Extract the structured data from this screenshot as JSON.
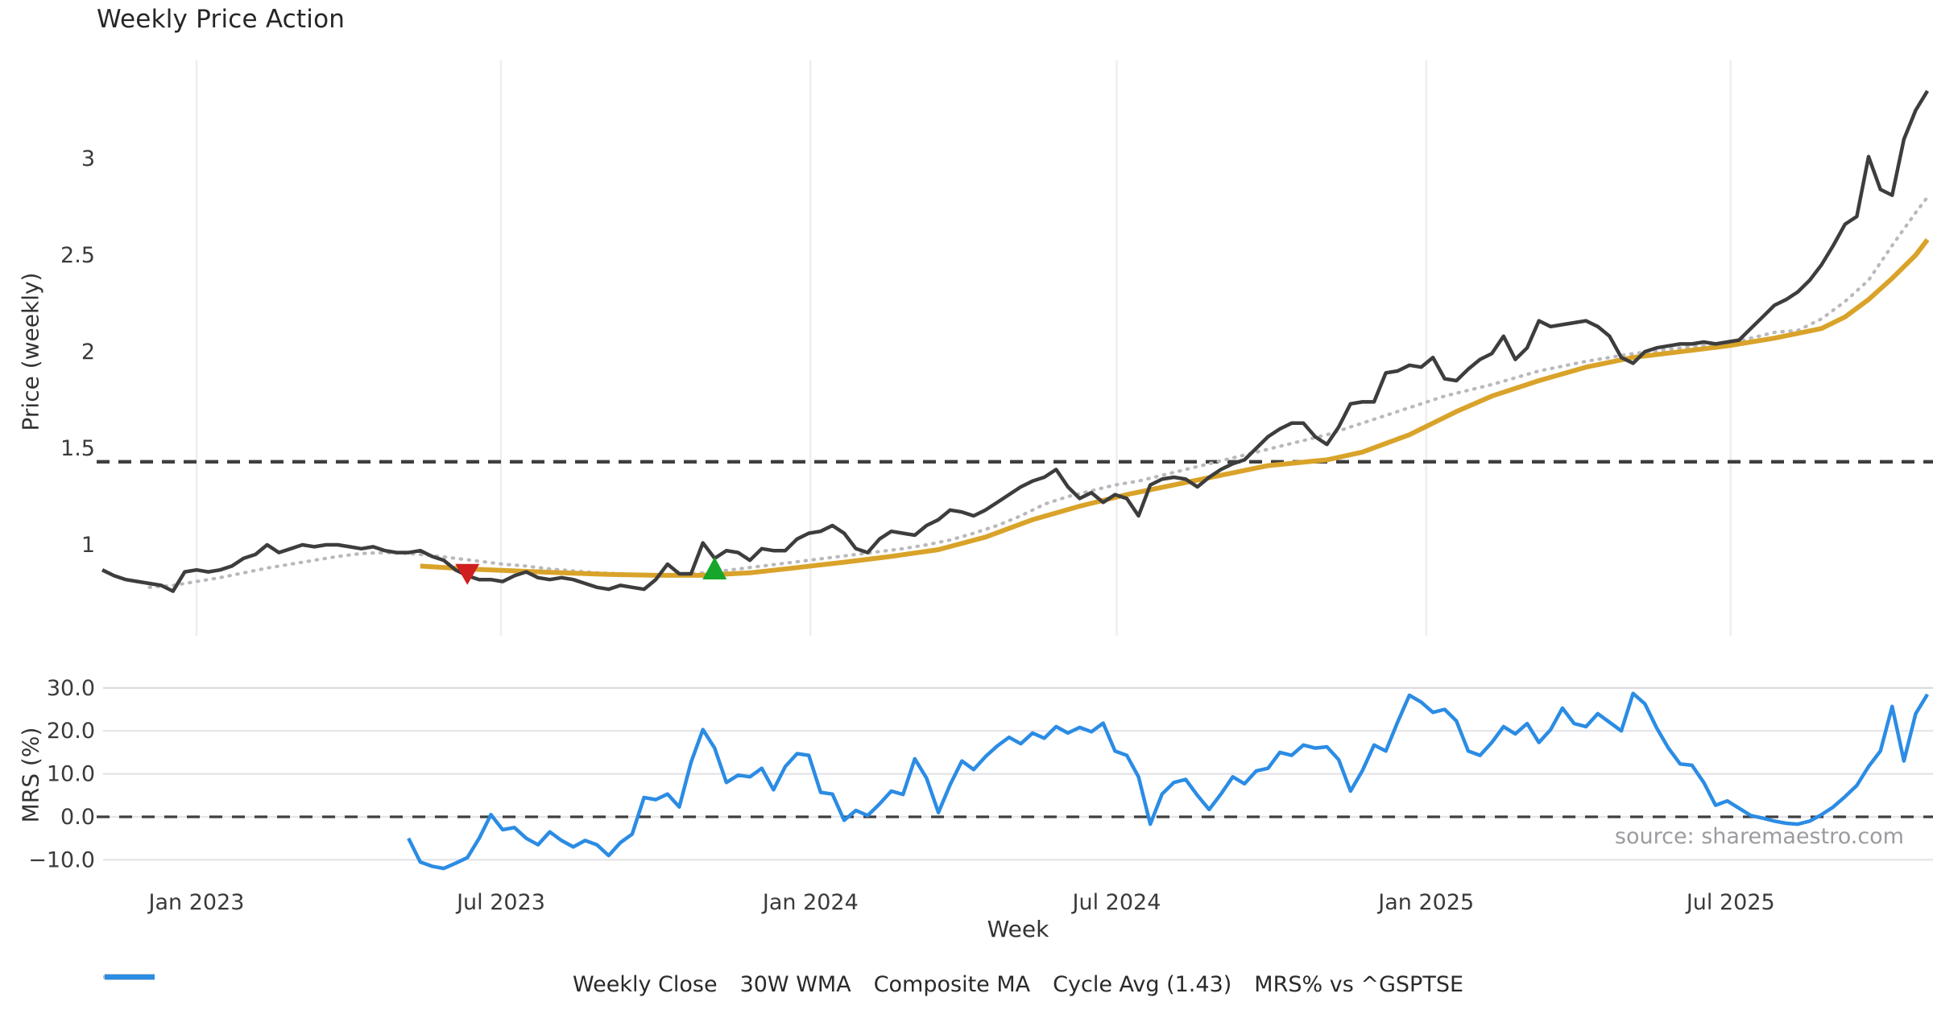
{
  "figure": {
    "title": "Weekly Price Action",
    "source_note": "source: sharemaestro.com",
    "background": "#ffffff"
  },
  "legend": {
    "items": [
      {
        "key": "weekly-close",
        "label": "Weekly Close",
        "color": "#3d3d3d",
        "style": "solid"
      },
      {
        "key": "wma-30w",
        "label": "30W WMA",
        "color": "#d9a32a",
        "style": "solid"
      },
      {
        "key": "composite-ma",
        "label": "Composite MA",
        "color": "#b9b9bd",
        "style": "dotted"
      },
      {
        "key": "cycle-avg",
        "label": "Cycle Avg (1.43)",
        "color": "#3f3f3f",
        "style": "dashed"
      },
      {
        "key": "mrs",
        "label": "MRS% vs ^GSPTSE",
        "color": "#2b8ce4",
        "style": "solid"
      }
    ]
  },
  "chart_data": {
    "type": "line",
    "title": "Weekly Price Action",
    "xlabel": "Week",
    "x_range": [
      "2022-11-06",
      "2025-10-26"
    ],
    "x_ticks": [
      {
        "date": "2023-01-01",
        "label": "Jan 2023"
      },
      {
        "date": "2023-07-01",
        "label": "Jul 2023"
      },
      {
        "date": "2024-01-01",
        "label": "Jan 2024"
      },
      {
        "date": "2024-07-01",
        "label": "Jul 2024"
      },
      {
        "date": "2025-01-01",
        "label": "Jan 2025"
      },
      {
        "date": "2025-07-01",
        "label": "Jul 2025"
      }
    ],
    "panels": [
      {
        "id": "price",
        "ylabel": "Price (weekly)",
        "ylim": [
          0.52,
          3.51
        ],
        "grid": "vertical",
        "yticks": [
          {
            "value": 1,
            "label": "1"
          },
          {
            "value": 1.5,
            "label": "1.5"
          },
          {
            "value": 2,
            "label": "2"
          },
          {
            "value": 2.5,
            "label": "2.5"
          },
          {
            "value": 3,
            "label": "3"
          }
        ],
        "cycle_avg": {
          "name": "Cycle Avg (1.43)",
          "value": 1.43,
          "color": "#3f3f3f",
          "style": "dashed",
          "width": 4.3
        },
        "series": [
          {
            "key": "weekly-close",
            "name": "Weekly Close",
            "color": "#3d3d3d",
            "style": "solid",
            "width": 4.5,
            "start": "2022-11-06",
            "step_days": 7,
            "values": [
              0.87,
              0.84,
              0.82,
              0.81,
              0.8,
              0.79,
              0.76,
              0.86,
              0.87,
              0.86,
              0.87,
              0.89,
              0.93,
              0.95,
              1.0,
              0.96,
              0.98,
              1.0,
              0.99,
              1.0,
              1.0,
              0.99,
              0.98,
              0.99,
              0.97,
              0.96,
              0.96,
              0.97,
              0.94,
              0.92,
              0.87,
              0.84,
              0.82,
              0.82,
              0.81,
              0.84,
              0.86,
              0.83,
              0.82,
              0.83,
              0.82,
              0.8,
              0.78,
              0.77,
              0.79,
              0.78,
              0.77,
              0.82,
              0.9,
              0.85,
              0.85,
              1.01,
              0.93,
              0.97,
              0.96,
              0.92,
              0.98,
              0.97,
              0.97,
              1.03,
              1.06,
              1.07,
              1.1,
              1.06,
              0.98,
              0.96,
              1.03,
              1.07,
              1.06,
              1.05,
              1.1,
              1.13,
              1.18,
              1.17,
              1.15,
              1.18,
              1.22,
              1.26,
              1.3,
              1.33,
              1.35,
              1.39,
              1.3,
              1.24,
              1.27,
              1.22,
              1.26,
              1.24,
              1.15,
              1.31,
              1.34,
              1.35,
              1.34,
              1.3,
              1.35,
              1.39,
              1.42,
              1.44,
              1.5,
              1.56,
              1.6,
              1.63,
              1.63,
              1.56,
              1.52,
              1.61,
              1.73,
              1.74,
              1.74,
              1.89,
              1.9,
              1.93,
              1.92,
              1.97,
              1.86,
              1.85,
              1.91,
              1.96,
              1.99,
              2.08,
              1.96,
              2.02,
              2.16,
              2.13,
              2.14,
              2.15,
              2.16,
              2.13,
              2.08,
              1.97,
              1.94,
              2.0,
              2.02,
              2.03,
              2.04,
              2.04,
              2.05,
              2.04,
              2.05,
              2.06,
              2.12,
              2.18,
              2.24,
              2.27,
              2.31,
              2.37,
              2.45,
              2.55,
              2.66,
              2.7,
              3.01,
              2.84,
              2.81,
              3.1,
              3.25,
              3.35
            ]
          },
          {
            "key": "wma-30w",
            "name": "30W WMA",
            "color": "#d9a32a",
            "style": "solid",
            "width": 6,
            "points": [
              [
                "2023-05-14",
                0.89
              ],
              [
                "2023-06-11",
                0.875
              ],
              [
                "2023-07-09",
                0.865
              ],
              [
                "2023-08-06",
                0.855
              ],
              [
                "2023-09-03",
                0.847
              ],
              [
                "2023-10-01",
                0.842
              ],
              [
                "2023-10-29",
                0.842
              ],
              [
                "2023-11-26",
                0.855
              ],
              [
                "2023-12-24",
                0.882
              ],
              [
                "2024-01-21",
                0.91
              ],
              [
                "2024-02-18",
                0.94
              ],
              [
                "2024-03-17",
                0.975
              ],
              [
                "2024-04-14",
                1.04
              ],
              [
                "2024-05-12",
                1.13
              ],
              [
                "2024-06-09",
                1.2
              ],
              [
                "2024-07-07",
                1.26
              ],
              [
                "2024-08-04",
                1.31
              ],
              [
                "2024-09-01",
                1.36
              ],
              [
                "2024-09-29",
                1.41
              ],
              [
                "2024-11-03",
                1.44
              ],
              [
                "2024-11-24",
                1.48
              ],
              [
                "2024-12-22",
                1.57
              ],
              [
                "2025-01-19",
                1.69
              ],
              [
                "2025-02-09",
                1.77
              ],
              [
                "2025-03-09",
                1.85
              ],
              [
                "2025-04-06",
                1.92
              ],
              [
                "2025-05-04",
                1.97
              ],
              [
                "2025-06-01",
                2.0
              ],
              [
                "2025-06-29",
                2.03
              ],
              [
                "2025-07-27",
                2.07
              ],
              [
                "2025-08-24",
                2.12
              ],
              [
                "2025-09-07",
                2.18
              ],
              [
                "2025-09-21",
                2.27
              ],
              [
                "2025-10-05",
                2.38
              ],
              [
                "2025-10-19",
                2.5
              ],
              [
                "2025-10-26",
                2.58
              ]
            ]
          },
          {
            "key": "composite-ma",
            "name": "Composite MA",
            "color": "#b9b9bd",
            "style": "dotted",
            "width": 4.2,
            "points": [
              [
                "2022-12-04",
                0.78
              ],
              [
                "2022-12-18",
                0.79
              ],
              [
                "2023-01-01",
                0.81
              ],
              [
                "2023-01-15",
                0.83
              ],
              [
                "2023-01-29",
                0.855
              ],
              [
                "2023-02-12",
                0.88
              ],
              [
                "2023-02-26",
                0.9
              ],
              [
                "2023-03-12",
                0.92
              ],
              [
                "2023-03-26",
                0.94
              ],
              [
                "2023-04-09",
                0.955
              ],
              [
                "2023-04-23",
                0.96
              ],
              [
                "2023-05-07",
                0.955
              ],
              [
                "2023-05-21",
                0.945
              ],
              [
                "2023-06-04",
                0.93
              ],
              [
                "2023-06-18",
                0.915
              ],
              [
                "2023-07-02",
                0.9
              ],
              [
                "2023-07-16",
                0.89
              ],
              [
                "2023-07-30",
                0.875
              ],
              [
                "2023-08-13",
                0.865
              ],
              [
                "2023-08-27",
                0.855
              ],
              [
                "2023-09-10",
                0.85
              ],
              [
                "2023-09-24",
                0.845
              ],
              [
                "2023-10-08",
                0.845
              ],
              [
                "2023-10-22",
                0.85
              ],
              [
                "2023-11-05",
                0.86
              ],
              [
                "2023-11-19",
                0.875
              ],
              [
                "2023-12-03",
                0.89
              ],
              [
                "2023-12-17",
                0.905
              ],
              [
                "2023-12-31",
                0.92
              ],
              [
                "2024-01-14",
                0.935
              ],
              [
                "2024-01-28",
                0.95
              ],
              [
                "2024-02-11",
                0.965
              ],
              [
                "2024-02-25",
                0.98
              ],
              [
                "2024-03-10",
                1.0
              ],
              [
                "2024-03-24",
                1.025
              ],
              [
                "2024-04-07",
                1.06
              ],
              [
                "2024-04-21",
                1.1
              ],
              [
                "2024-05-05",
                1.15
              ],
              [
                "2024-05-19",
                1.21
              ],
              [
                "2024-06-02",
                1.25
              ],
              [
                "2024-06-16",
                1.28
              ],
              [
                "2024-06-30",
                1.31
              ],
              [
                "2024-07-14",
                1.33
              ],
              [
                "2024-07-28",
                1.36
              ],
              [
                "2024-08-11",
                1.39
              ],
              [
                "2024-08-25",
                1.42
              ],
              [
                "2024-09-08",
                1.45
              ],
              [
                "2024-09-22",
                1.48
              ],
              [
                "2024-10-06",
                1.51
              ],
              [
                "2024-10-20",
                1.54
              ],
              [
                "2024-11-03",
                1.57
              ],
              [
                "2024-11-17",
                1.61
              ],
              [
                "2024-12-01",
                1.65
              ],
              [
                "2024-12-15",
                1.69
              ],
              [
                "2024-12-29",
                1.73
              ],
              [
                "2025-01-12",
                1.77
              ],
              [
                "2025-02-09",
                1.83
              ],
              [
                "2025-03-09",
                1.9
              ],
              [
                "2025-04-06",
                1.95
              ],
              [
                "2025-05-04",
                1.99
              ],
              [
                "2025-06-01",
                2.02
              ],
              [
                "2025-06-29",
                2.04
              ],
              [
                "2025-07-27",
                2.1
              ],
              [
                "2025-08-10",
                2.11
              ],
              [
                "2025-08-24",
                2.17
              ],
              [
                "2025-09-07",
                2.26
              ],
              [
                "2025-09-21",
                2.37
              ],
              [
                "2025-10-05",
                2.55
              ],
              [
                "2025-10-19",
                2.72
              ],
              [
                "2025-10-26",
                2.8
              ]
            ]
          }
        ],
        "markers": [
          {
            "key": "sell-signal",
            "shape": "triangle-down",
            "color": "#d01f1f",
            "date": "2023-06-11",
            "value": 0.855
          },
          {
            "key": "buy-signal",
            "shape": "triangle-up",
            "color": "#17a62b",
            "date": "2023-11-05",
            "value": 0.875
          }
        ]
      },
      {
        "id": "mrs",
        "ylabel": "MRS (%)",
        "ylim": [
          -16.6,
          33.6
        ],
        "grid": "horizontal",
        "zero_line": 0,
        "yticks": [
          {
            "value": 30,
            "label": "30.0"
          },
          {
            "value": 20,
            "label": "20.0"
          },
          {
            "value": 10,
            "label": "10.0"
          },
          {
            "value": 0,
            "label": "0.0"
          },
          {
            "value": -10,
            "label": "−10.0"
          }
        ],
        "series": [
          {
            "key": "mrs",
            "name": "MRS% vs ^GSPTSE",
            "color": "#2b8ce4",
            "style": "solid",
            "width": 4.5,
            "start": "2023-05-07",
            "step_days": 7,
            "values": [
              -5,
              -10.5,
              -11.5,
              -12,
              -10.8,
              -9.5,
              -5,
              0.5,
              -3,
              -2.5,
              -5,
              -6.5,
              -3.5,
              -5.5,
              -7,
              -5.5,
              -6.5,
              -9,
              -6,
              -4,
              4.5,
              4,
              5.3,
              2.3,
              12.7,
              20.3,
              16,
              8,
              9.7,
              9.3,
              11.3,
              6.3,
              11.7,
              14.7,
              14.3,
              5.7,
              5.3,
              -0.8,
              1.5,
              0.3,
              3,
              6,
              5.2,
              13.5,
              9,
              1,
              7.5,
              13,
              11,
              14,
              16.5,
              18.5,
              17,
              19.5,
              18.3,
              21,
              19.5,
              20.8,
              19.8,
              21.8,
              15.3,
              14.3,
              9.3,
              -1.7,
              5.3,
              8,
              8.7,
              5,
              1.7,
              5.3,
              9.3,
              7.7,
              10.7,
              11.3,
              15,
              14.3,
              16.7,
              16,
              16.3,
              13.3,
              6,
              10.7,
              16.7,
              15.3,
              22,
              28.3,
              26.7,
              24.3,
              25,
              22.3,
              15.3,
              14.3,
              17.3,
              21,
              19.3,
              21.7,
              17.3,
              20.3,
              25.3,
              21.7,
              21,
              24,
              22,
              20,
              28.7,
              26.3,
              20.7,
              16,
              12.3,
              12,
              8,
              2.7,
              3.7,
              2,
              0.3,
              -0.3,
              -1,
              -1.5,
              -1.7,
              -1,
              0.5,
              2.3,
              4.7,
              7.3,
              11.7,
              15.3,
              25.7,
              13,
              24,
              28.5
            ]
          }
        ]
      }
    ]
  }
}
